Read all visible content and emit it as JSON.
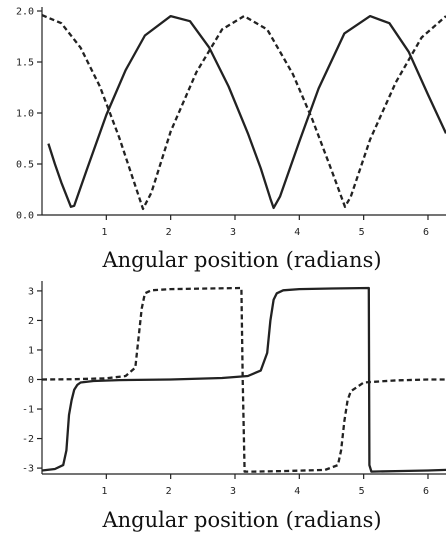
{
  "chart_data": [
    {
      "type": "line",
      "title": "",
      "xlabel": "Angular position (radians)",
      "ylabel": "",
      "xlim": [
        0.0,
        6.28
      ],
      "ylim": [
        0.0,
        2.0
      ],
      "xticks": [
        1,
        2,
        3,
        4,
        5,
        6
      ],
      "xtick_labels": [
        "1",
        "2",
        "3",
        "4",
        "5",
        "6"
      ],
      "yticks": [
        0.0,
        0.5,
        1.0,
        1.5,
        2.0
      ],
      "ytick_labels": [
        "0.0",
        "0.5",
        "1.0",
        "1.5",
        "2.0"
      ],
      "grid": false,
      "series": [
        {
          "style": "solid",
          "x": [
            0.1,
            0.2,
            0.3,
            0.4,
            0.45,
            0.5,
            0.7,
            1.0,
            1.3,
            1.6,
            2.0,
            2.3,
            2.6,
            2.9,
            3.2,
            3.4,
            3.55,
            3.6,
            3.7,
            4.0,
            4.3,
            4.7,
            5.1,
            5.4,
            5.7,
            6.0,
            6.28
          ],
          "y": [
            0.7,
            0.5,
            0.32,
            0.16,
            0.08,
            0.09,
            0.45,
            0.98,
            1.42,
            1.76,
            1.95,
            1.9,
            1.64,
            1.26,
            0.8,
            0.46,
            0.16,
            0.07,
            0.18,
            0.72,
            1.24,
            1.78,
            1.95,
            1.88,
            1.6,
            1.18,
            0.8
          ]
        },
        {
          "style": "dashed",
          "x": [
            0.0,
            0.3,
            0.6,
            0.9,
            1.2,
            1.4,
            1.57,
            1.7,
            2.0,
            2.4,
            2.8,
            3.14,
            3.5,
            3.9,
            4.2,
            4.5,
            4.71,
            4.8,
            5.1,
            5.5,
            5.9,
            6.28
          ],
          "y": [
            1.96,
            1.88,
            1.64,
            1.26,
            0.76,
            0.38,
            0.06,
            0.22,
            0.82,
            1.4,
            1.82,
            1.95,
            1.82,
            1.38,
            0.94,
            0.44,
            0.08,
            0.18,
            0.74,
            1.3,
            1.74,
            1.95
          ]
        }
      ]
    },
    {
      "type": "line",
      "title": "",
      "xlabel": "Angular position (radians)",
      "ylabel": "",
      "xlim": [
        0.0,
        6.28
      ],
      "ylim": [
        -3.2,
        3.2
      ],
      "xticks": [
        1,
        2,
        3,
        4,
        5,
        6
      ],
      "xtick_labels": [
        "1",
        "2",
        "3",
        "4",
        "5",
        "6"
      ],
      "yticks": [
        3,
        2,
        1,
        0,
        -1,
        -2,
        -3
      ],
      "ytick_labels": [
        "3",
        "2",
        "1",
        "0",
        "-1",
        "-2",
        "-3"
      ],
      "grid": false,
      "series": [
        {
          "style": "solid",
          "x": [
            0.0,
            0.2,
            0.33,
            0.38,
            0.42,
            0.46,
            0.5,
            0.55,
            0.6,
            0.8,
            1.2,
            2.0,
            2.8,
            3.2,
            3.4,
            3.5,
            3.55,
            3.6,
            3.65,
            3.75,
            4.0,
            4.5,
            5.08,
            5.09,
            5.12,
            5.6,
            6.0,
            6.28
          ],
          "y": [
            -3.08,
            -3.03,
            -2.9,
            -2.4,
            -1.2,
            -0.7,
            -0.35,
            -0.18,
            -0.1,
            -0.05,
            -0.02,
            0.0,
            0.05,
            0.12,
            0.3,
            0.9,
            2.0,
            2.7,
            2.92,
            3.02,
            3.06,
            3.08,
            3.1,
            -2.9,
            -3.12,
            -3.1,
            -3.08,
            -3.06
          ]
        },
        {
          "style": "dashed",
          "x": [
            0.0,
            0.5,
            1.0,
            1.3,
            1.45,
            1.5,
            1.55,
            1.6,
            1.7,
            2.0,
            2.6,
            3.1,
            3.12,
            3.15,
            3.3,
            3.8,
            4.4,
            4.6,
            4.65,
            4.7,
            4.75,
            4.8,
            5.0,
            5.5,
            6.0,
            6.28
          ],
          "y": [
            0.0,
            0.01,
            0.04,
            0.12,
            0.4,
            1.4,
            2.4,
            2.92,
            3.02,
            3.06,
            3.08,
            3.1,
            0.0,
            -3.12,
            -3.12,
            -3.1,
            -3.06,
            -2.9,
            -2.4,
            -1.4,
            -0.7,
            -0.4,
            -0.1,
            -0.03,
            0.0,
            0.0
          ]
        }
      ]
    }
  ]
}
